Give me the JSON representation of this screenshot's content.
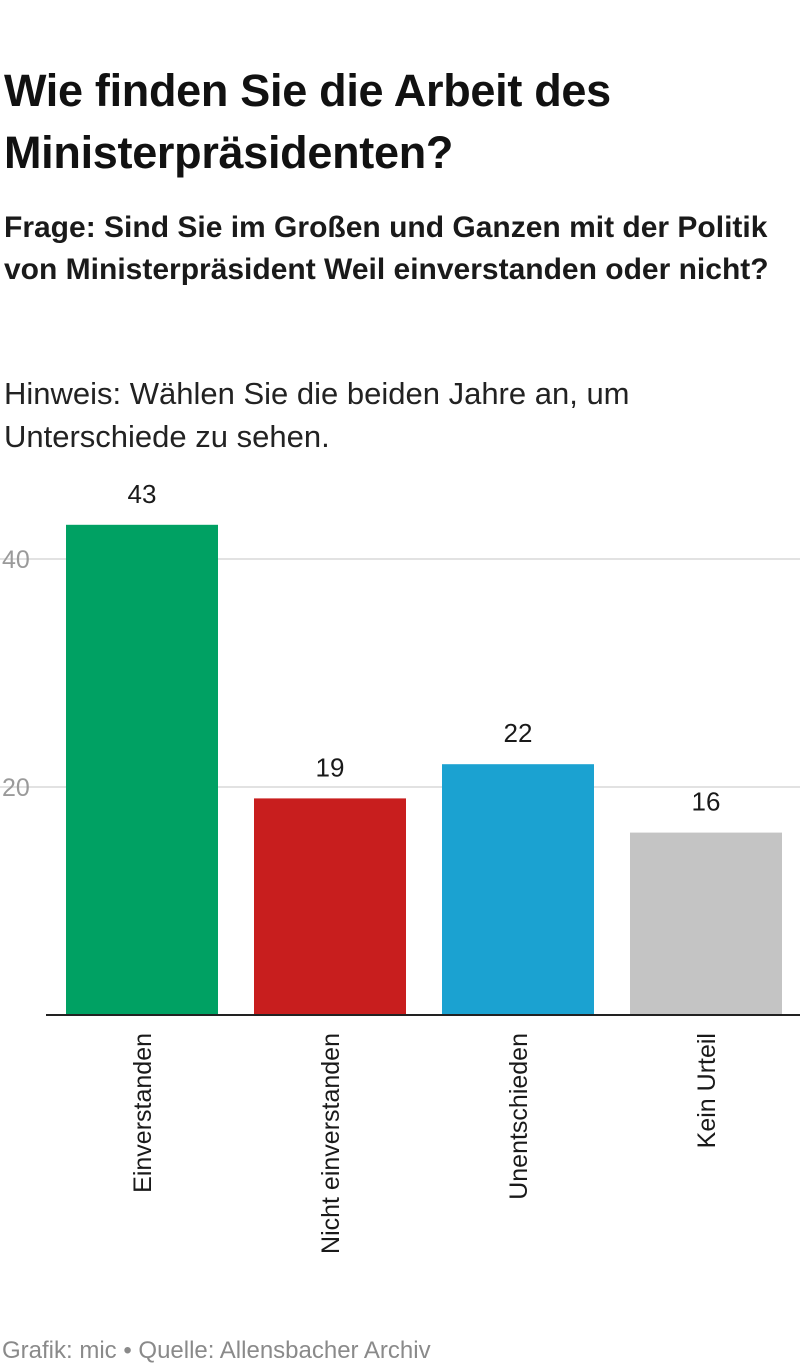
{
  "header": {
    "title": "Wie finden Sie die Arbeit des Ministerpräsidenten?",
    "subtitle": "Frage: Sind Sie im Großen und Ganzen mit der Politik von Ministerpräsident Weil einverstanden oder nicht?",
    "hint": "Hinweis: Wählen Sie die beiden Jahre an, um Unterschiede zu sehen."
  },
  "footer": {
    "text": "Grafik: mic • Quelle: Allensbacher Archiv"
  },
  "chart_data": {
    "type": "bar",
    "title": "Wie finden Sie die Arbeit des Ministerpräsidenten?",
    "categories": [
      "Einverstanden",
      "Nicht einverstanden",
      "Unentschieden",
      "Kein Urteil"
    ],
    "values": [
      43,
      19,
      22,
      16
    ],
    "colors": [
      "#00a163",
      "#c81e1e",
      "#1ba2d1",
      "#c4c4c4"
    ],
    "ylim": [
      0,
      47
    ],
    "yticks": [
      20,
      40
    ],
    "xlabel": "",
    "ylabel": "",
    "grid": true,
    "data_labels": true,
    "x_labels_rotated": true
  }
}
